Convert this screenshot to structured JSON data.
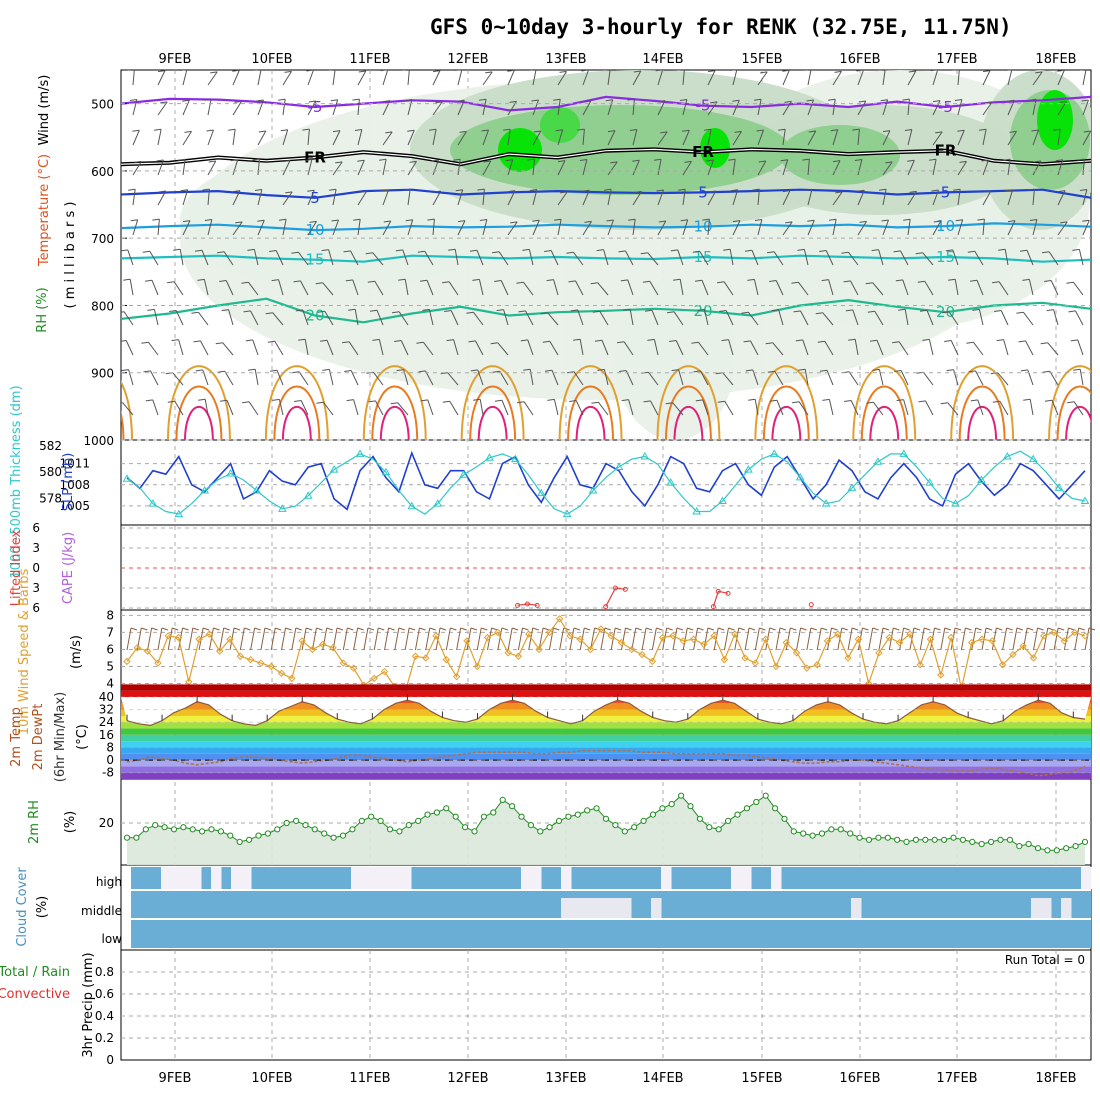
{
  "title": "GFS 0~10day 3-hourly for RENK (32.75E, 11.75N)",
  "dates": [
    "9FEB",
    "10FEB",
    "11FEB",
    "12FEB",
    "13FEB",
    "14FEB",
    "15FEB",
    "16FEB",
    "17FEB",
    "18FEB"
  ],
  "colors": {
    "grid": "#aaaaaa",
    "purple": "#8a2be2",
    "cyan": "#1fbfbf",
    "teal": "#20b890",
    "orange": "#e0a030",
    "magenta": "#e0207a",
    "blue": "#2040d0",
    "lightcyan": "#30c8c8",
    "green": "#228b22",
    "cloud": "#6aaed6"
  },
  "chart_data": [
    {
      "panel": "upper-air",
      "type": "heatmap",
      "labels": {
        "wind": "Wind (m/s)",
        "temp": "Temperature (°C)",
        "rh": "RH (%)",
        "pressure": "( m i l l i b a r s )"
      },
      "ylim": [
        1000,
        450
      ],
      "yticks": [
        500,
        600,
        700,
        800,
        900,
        1000
      ],
      "temp_contours": [
        {
          "label": "-5",
          "value": -5,
          "p": [
            500,
            493,
            494,
            498,
            505,
            500,
            495,
            497,
            510,
            505,
            490,
            496,
            503,
            505,
            500,
            505,
            497,
            505,
            498,
            495,
            490
          ]
        },
        {
          "label": "FR",
          "value": 0,
          "p": [
            590,
            588,
            580,
            585,
            580,
            572,
            578,
            590,
            575,
            580,
            570,
            568,
            572,
            568,
            570,
            575,
            572,
            570,
            585,
            590,
            585
          ]
        },
        {
          "label": "5",
          "value": 5,
          "p": [
            635,
            632,
            630,
            636,
            640,
            630,
            628,
            635,
            632,
            630,
            632,
            633,
            632,
            630,
            628,
            630,
            635,
            632,
            630,
            628,
            640
          ]
        },
        {
          "label": "10",
          "value": 10,
          "p": [
            685,
            682,
            680,
            684,
            688,
            686,
            682,
            684,
            683,
            680,
            682,
            684,
            683,
            680,
            682,
            680,
            684,
            682,
            678,
            680,
            683
          ]
        },
        {
          "label": "15",
          "value": 15,
          "p": [
            730,
            728,
            726,
            730,
            732,
            735,
            726,
            728,
            730,
            728,
            730,
            731,
            728,
            730,
            726,
            728,
            730,
            728,
            730,
            735,
            732
          ]
        },
        {
          "label": "20",
          "value": 20,
          "p": [
            820,
            812,
            800,
            790,
            815,
            825,
            812,
            802,
            815,
            810,
            808,
            805,
            808,
            815,
            800,
            792,
            802,
            810,
            800,
            796,
            805
          ]
        }
      ],
      "rh_levels": [
        "30",
        "50",
        "70",
        "90"
      ]
    },
    {
      "panel": "thickness-slp",
      "type": "line",
      "labels": {
        "thickness": "1000~500mb Thickness (dm)",
        "slp": "SLP (mb)"
      },
      "thickness_ticks": [
        578,
        580,
        582
      ],
      "slp_ticks": [
        1005,
        1008,
        1011
      ],
      "slp": [
        1009,
        1007.5,
        1010,
        1009.5,
        1012,
        1008,
        1007,
        1009,
        1011,
        1006,
        1007,
        1010,
        1008.5,
        1008,
        1010.5,
        1011,
        1006,
        1004.5,
        1010,
        1012,
        1009,
        1007,
        1012.5,
        1008,
        1007.5,
        1010,
        1010,
        1007,
        1006,
        1011,
        1012,
        1008,
        1005.5,
        1009,
        1012,
        1008,
        1007.5,
        1011,
        1010,
        1007,
        1005,
        1008,
        1012,
        1011,
        1007.5,
        1007,
        1010,
        1011,
        1008,
        1006.5,
        1010.5,
        1012,
        1009,
        1006,
        1008,
        1011.5,
        1010,
        1007,
        1006,
        1009,
        1011,
        1009,
        1006,
        1005,
        1009.5,
        1011,
        1008.5,
        1006.5,
        1008,
        1011,
        1010,
        1008,
        1006,
        1008,
        1010
      ],
      "thickness": [
        579.5,
        578.8,
        577.6,
        577.0,
        576.8,
        577.6,
        578.6,
        579.4,
        579.9,
        579.4,
        578.6,
        577.8,
        577.2,
        577.4,
        578.2,
        579.2,
        580.2,
        580.8,
        581.4,
        581.0,
        580.0,
        578.6,
        577.4,
        576.8,
        577.6,
        578.8,
        579.8,
        580.4,
        581.1,
        581.4,
        581.0,
        579.8,
        578.4,
        577.2,
        576.8,
        577.4,
        578.6,
        579.6,
        580.4,
        581.0,
        581.2,
        580.6,
        579.2,
        578.0,
        577.0,
        577.0,
        577.8,
        579.0,
        580.2,
        581.0,
        581.4,
        580.8,
        579.6,
        578.4,
        577.6,
        577.8,
        578.8,
        579.8,
        580.8,
        581.4,
        581.4,
        580.4,
        579.2,
        578.0,
        577.6,
        578.2,
        579.4,
        580.4,
        581.2,
        581.6,
        581.0,
        580.0,
        578.8,
        578.0,
        577.8
      ]
    },
    {
      "panel": "instability",
      "type": "line",
      "labels": {
        "li": "Lifted Index",
        "cape": "CAPE (J/kg)"
      },
      "yticks": [
        "6",
        "3",
        "0",
        "3",
        "6"
      ],
      "li": [
        [
          12.5,
          5.6
        ],
        [
          12.6,
          5.4
        ],
        [
          12.7,
          5.6
        ],
        [
          13.4,
          5.8
        ],
        [
          13.5,
          3.0
        ],
        [
          13.6,
          3.2
        ],
        [
          14.5,
          5.8
        ],
        [
          14.55,
          3.5
        ],
        [
          14.65,
          3.8
        ],
        [
          15.5,
          5.5
        ]
      ]
    },
    {
      "panel": "wind10m",
      "type": "line",
      "labels": {
        "name": "10m Wind Speed & Barbs",
        "unit": "(m/s)"
      },
      "ylim": [
        3.5,
        8
      ],
      "yticks": [
        4,
        5,
        6,
        7,
        8
      ],
      "speed": [
        5.3,
        6.1,
        5.9,
        5.2,
        6.8,
        6.7,
        4.1,
        6.6,
        6.9,
        5.9,
        6.6,
        5.6,
        5.4,
        5.2,
        5.0,
        4.6,
        4.3,
        6.5,
        6.0,
        6.3,
        6.1,
        5.2,
        4.9,
        3.9,
        4.3,
        4.7,
        3.8,
        3.5,
        5.6,
        5.5,
        6.8,
        5.4,
        4.4,
        6.5,
        5.0,
        6.7,
        7.0,
        5.8,
        5.6,
        6.9,
        6.0,
        7.0,
        7.8,
        6.8,
        6.6,
        6.0,
        7.2,
        6.8,
        6.4,
        6.0,
        5.7,
        5.3,
        6.7,
        6.8,
        6.5,
        6.6,
        6.3,
        6.8,
        5.4,
        6.9,
        5.5,
        5.2,
        6.6,
        5.0,
        6.4,
        5.8,
        4.9,
        5.1,
        6.5,
        6.9,
        5.5,
        6.6,
        4.0,
        5.8,
        6.7,
        6.4,
        6.9,
        5.1,
        6.6,
        4.5,
        6.7,
        3.7,
        6.4,
        6.6,
        6.5,
        5.1,
        5.7,
        6.2,
        5.5,
        6.8,
        7.0,
        6.5,
        7.0,
        6.8
      ]
    },
    {
      "panel": "temperature2m",
      "type": "area",
      "labels": {
        "temp": "2m Temp",
        "dewpt": "2m DewPt",
        "minmax": "(6hr Min/Max)",
        "unit": "(°C)"
      },
      "ylim": [
        -12,
        40
      ],
      "yticks": [
        -8,
        0,
        8,
        16,
        24,
        32,
        40
      ],
      "temp": [
        25,
        23,
        22,
        25,
        30,
        33,
        37,
        35,
        29,
        25,
        23,
        22,
        25,
        31,
        34,
        37,
        35,
        30,
        26,
        24,
        23,
        26,
        32,
        36,
        38,
        36,
        31,
        27,
        25,
        24,
        26,
        32,
        36,
        38,
        36,
        31,
        27,
        25,
        23,
        25,
        31,
        35,
        38,
        36,
        31,
        27,
        25,
        24,
        26,
        32,
        36,
        38,
        36,
        31,
        26,
        24,
        23,
        25,
        31,
        35,
        37,
        35,
        30,
        26,
        24,
        23,
        25,
        30,
        35,
        37,
        35,
        30,
        27,
        25,
        23,
        25,
        31,
        35,
        38,
        36,
        30,
        27,
        26
      ],
      "dewpt": [
        -1,
        0,
        2,
        1,
        0,
        -2,
        -3,
        -2,
        -1,
        1,
        2,
        2,
        1,
        0,
        -1,
        -2,
        -1,
        0,
        1,
        3,
        3,
        2,
        1,
        0,
        -1,
        0,
        1,
        2,
        3,
        4,
        5,
        5,
        5,
        5,
        5,
        4,
        4,
        5,
        5,
        6,
        6,
        6,
        6,
        6,
        5,
        5,
        5,
        4,
        4,
        4,
        4,
        4,
        3,
        3,
        2,
        1,
        0,
        -1,
        -2,
        -2,
        -1,
        -1,
        0,
        0,
        -1,
        -2,
        -3,
        -4,
        -5,
        -6,
        -6,
        -7,
        -7,
        -6,
        -5,
        -6,
        -7,
        -8,
        -10,
        -9,
        -8,
        -7,
        -4
      ]
    },
    {
      "panel": "rh2m",
      "type": "area",
      "labels": {
        "name": "2m RH",
        "unit": "(%)"
      },
      "ylim": [
        0,
        40
      ],
      "yticks": [
        20
      ],
      "rh": [
        13,
        13,
        17,
        19,
        18,
        17,
        18,
        17,
        16,
        17,
        16,
        14,
        11,
        12,
        14,
        15,
        17,
        20,
        21,
        19,
        17,
        15,
        13,
        14,
        17,
        21,
        23,
        21,
        17,
        16,
        19,
        21,
        24,
        25,
        27,
        23,
        18,
        16,
        23,
        25,
        31,
        28,
        23,
        19,
        16,
        18,
        21,
        23,
        24,
        26,
        27,
        22,
        19,
        16,
        18,
        21,
        24,
        27,
        29,
        33,
        28,
        22,
        18,
        17,
        21,
        24,
        27,
        30,
        33,
        27,
        22,
        16,
        15,
        14,
        15,
        17,
        17,
        15,
        13,
        12,
        13,
        13,
        12,
        11,
        12,
        12,
        12,
        12,
        13,
        12,
        11,
        10,
        11,
        12,
        12,
        9,
        10,
        8,
        7,
        7,
        8,
        9,
        11
      ]
    },
    {
      "panel": "cloud",
      "type": "heatmap",
      "labels": {
        "name": "Cloud Cover",
        "unit": "(%)",
        "levels": [
          "high",
          "middle",
          "low"
        ]
      },
      "high": [
        0,
        0,
        0,
        1,
        1,
        1,
        1,
        0,
        1,
        0,
        1,
        1,
        0,
        0,
        0,
        0,
        0,
        0,
        0,
        0,
        0,
        0,
        1,
        1,
        1,
        1,
        1,
        1,
        0,
        0,
        0,
        0,
        0,
        0,
        0,
        0,
        0,
        0,
        0,
        1,
        1,
        0,
        0,
        1,
        0,
        0,
        0,
        0,
        0,
        0,
        0,
        0,
        0,
        1,
        0,
        0,
        0,
        0,
        0,
        0,
        1,
        1,
        0,
        0,
        1,
        0,
        0,
        0,
        0,
        0,
        0,
        0,
        0,
        0,
        0,
        0,
        0,
        0,
        0,
        0,
        0,
        0,
        0,
        0,
        0,
        0,
        0,
        0,
        0,
        0,
        0,
        0,
        0,
        0,
        0,
        1
      ],
      "middle": [
        0,
        0,
        0,
        0,
        0,
        0,
        0,
        0,
        0,
        0,
        0,
        0,
        0,
        0,
        0,
        0,
        0,
        0,
        0,
        0,
        0,
        0,
        0,
        0,
        0,
        0,
        0,
        0,
        0,
        0,
        0,
        0,
        0,
        0,
        0,
        0,
        0,
        0,
        0,
        0,
        0,
        0,
        0,
        1,
        1,
        1,
        1,
        1,
        1,
        1,
        0,
        0,
        1,
        0,
        0,
        0,
        0,
        0,
        0,
        0,
        0,
        0,
        0,
        0,
        0,
        0,
        0,
        0,
        0,
        0,
        0,
        0,
        1,
        0,
        0,
        0,
        0,
        0,
        0,
        0,
        0,
        0,
        0,
        0,
        0,
        0,
        0,
        0,
        0,
        0,
        1,
        1,
        0,
        1,
        0,
        0
      ]
    },
    {
      "panel": "precip",
      "type": "bar",
      "labels": {
        "total": "Total / Rain",
        "convective": "Convective",
        "ylabel": "3hr Precip (mm)",
        "run_total": "Run Total = 0"
      },
      "ylim": [
        0,
        1
      ],
      "yticks": [
        "0",
        "0.2",
        "0.4",
        "0.6",
        "0.8"
      ],
      "values": []
    }
  ]
}
